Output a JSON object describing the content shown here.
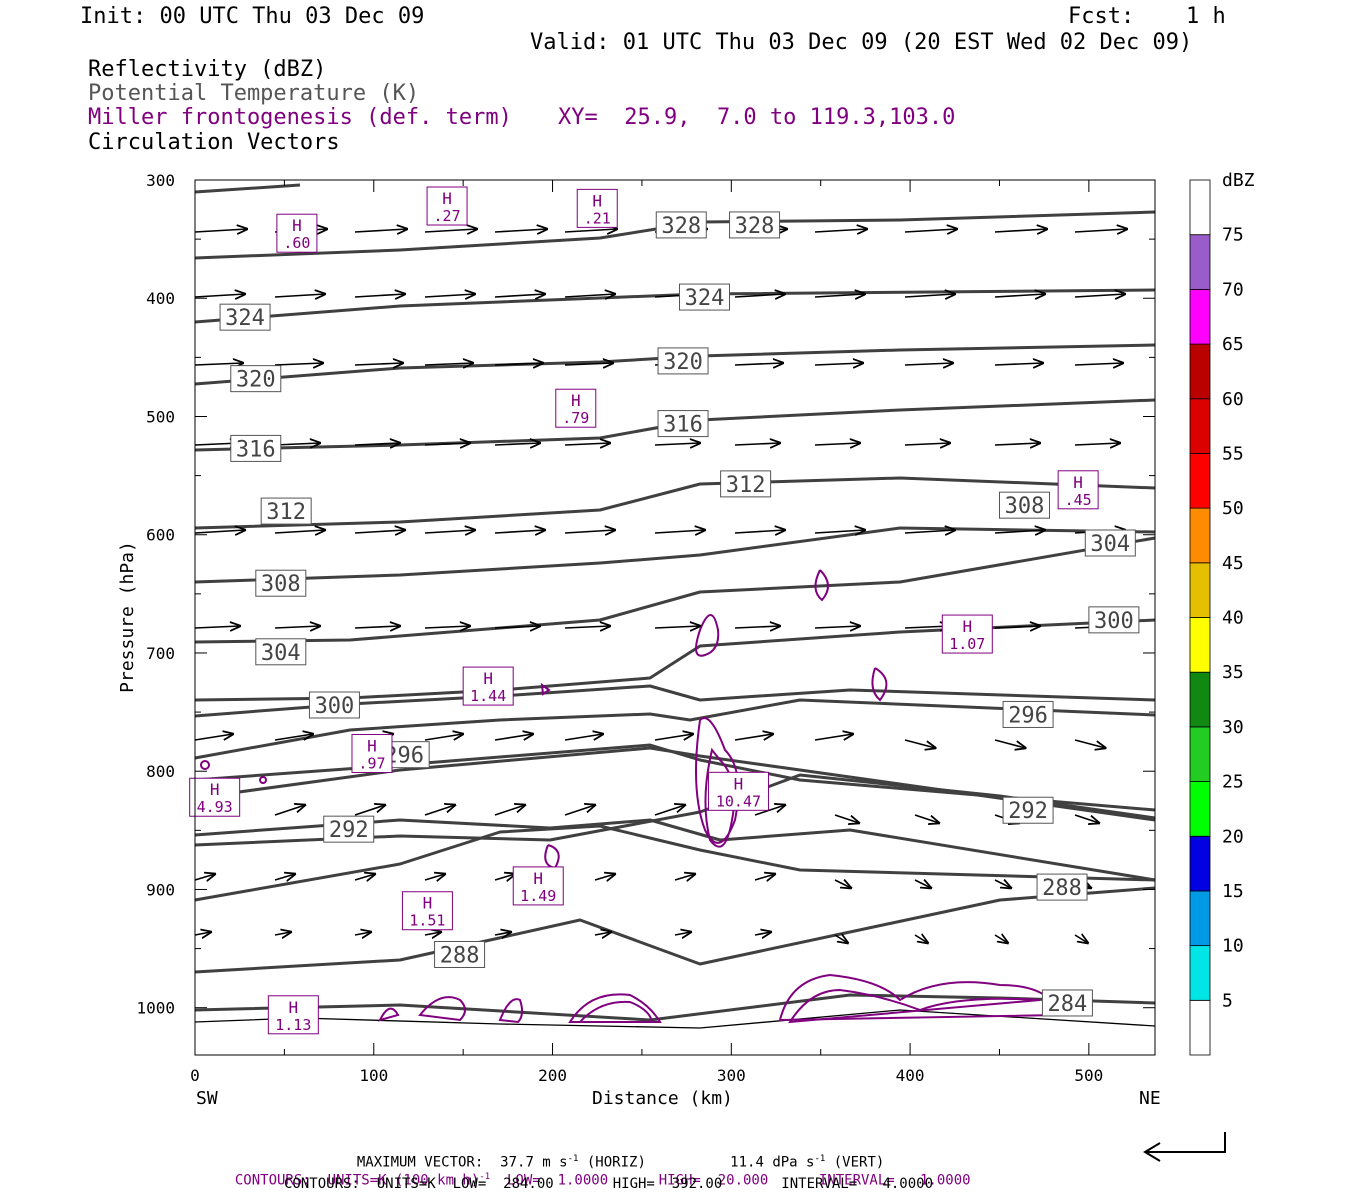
{
  "header": {
    "init": "Init: 00 UTC Thu 03 Dec 09",
    "fcst_label": "Fcst:",
    "fcst_value": "1 h",
    "valid": "Valid: 01 UTC Thu 03 Dec 09 (20 EST Wed 02 Dec 09)"
  },
  "legend": {
    "line1": "Reflectivity (dBZ)",
    "line2": "Potential Temperature (K)",
    "line3": "Miller frontogenesis (def. term)",
    "xy": "XY=  25.9,  7.0 to 119.3,103.0",
    "line4": "Circulation Vectors"
  },
  "colors": {
    "theta": "#404040",
    "frontogenesis": "#800080",
    "vectors": "#000000"
  },
  "chart_data": {
    "type": "cross-section",
    "xlabel": "Distance (km)",
    "ylabel": "Pressure (hPa)",
    "xlim": [
      0,
      537
    ],
    "ylim": [
      1040,
      300
    ],
    "x_ticks": [
      0,
      100,
      200,
      300,
      400,
      500
    ],
    "y_ticks": [
      300,
      400,
      500,
      600,
      700,
      800,
      900,
      1000
    ],
    "x_left_label": "SW",
    "x_right_label": "NE",
    "colorbar": {
      "unit": "dBZ",
      "levels": [
        5,
        10,
        15,
        20,
        25,
        30,
        35,
        40,
        45,
        50,
        55,
        60,
        65,
        70,
        75
      ],
      "colors": [
        "#ffffff",
        "#00e5e5",
        "#0099e6",
        "#0000e0",
        "#00ff00",
        "#22cc22",
        "#118811",
        "#ffff00",
        "#e5c000",
        "#ff8c00",
        "#ff0000",
        "#dd0000",
        "#bb0000",
        "#ff00ff",
        "#9a5cc8",
        "#ffffff"
      ]
    },
    "theta_labels": [
      {
        "v": "328",
        "x": 272,
        "p": 338
      },
      {
        "v": "328",
        "x": 313,
        "p": 338
      },
      {
        "v": "324",
        "x": 28,
        "p": 416
      },
      {
        "v": "324",
        "x": 285,
        "p": 399
      },
      {
        "v": "320",
        "x": 34,
        "p": 468
      },
      {
        "v": "320",
        "x": 273,
        "p": 453
      },
      {
        "v": "316",
        "x": 34,
        "p": 527
      },
      {
        "v": "316",
        "x": 273,
        "p": 506
      },
      {
        "v": "312",
        "x": 51,
        "p": 580
      },
      {
        "v": "312",
        "x": 308,
        "p": 557
      },
      {
        "v": "308",
        "x": 48,
        "p": 641
      },
      {
        "v": "308",
        "x": 464,
        "p": 575
      },
      {
        "v": "304",
        "x": 48,
        "p": 699
      },
      {
        "v": "304",
        "x": 512,
        "p": 607
      },
      {
        "v": "300",
        "x": 78,
        "p": 744
      },
      {
        "v": "300",
        "x": 514,
        "p": 672
      },
      {
        "v": "296",
        "x": 117,
        "p": 786
      },
      {
        "v": "296",
        "x": 466,
        "p": 752
      },
      {
        "v": "292",
        "x": 86,
        "p": 849
      },
      {
        "v": "292",
        "x": 466,
        "p": 833
      },
      {
        "v": "288",
        "x": 148,
        "p": 955
      },
      {
        "v": "288",
        "x": 485,
        "p": 898
      },
      {
        "v": "284",
        "x": 488,
        "p": 996
      }
    ],
    "frontogenesis_maxima": [
      {
        "label": "H",
        "value": ".60",
        "x": 57,
        "p": 345
      },
      {
        "label": "H",
        "value": ".27",
        "x": 141,
        "p": 322
      },
      {
        "label": "H",
        "value": ".21",
        "x": 225,
        "p": 324
      },
      {
        "label": "H",
        "value": ".79",
        "x": 213,
        "p": 493
      },
      {
        "label": "H",
        "value": ".45",
        "x": 494,
        "p": 562
      },
      {
        "label": "H",
        "value": "1.07",
        "x": 432,
        "p": 684
      },
      {
        "label": "H",
        "value": "1.44",
        "x": 164,
        "p": 728
      },
      {
        "label": "H",
        "value": ".97",
        "x": 99,
        "p": 785
      },
      {
        "label": "H",
        "value": "4.93",
        "x": 11,
        "p": 822
      },
      {
        "label": "H",
        "value": "10.47",
        "x": 304,
        "p": 817
      },
      {
        "label": "H",
        "value": "1.49",
        "x": 192,
        "p": 897
      },
      {
        "label": "H",
        "value": "1.51",
        "x": 130,
        "p": 918
      },
      {
        "label": "H",
        "value": "1.13",
        "x": 55,
        "p": 1006
      }
    ]
  },
  "footer": {
    "max_vector_label": "MAXIMUM VECTOR:",
    "max_vector_horiz": "37.7 m s",
    "max_vector_horiz_unit": " (HORIZ)",
    "max_vector_vert": "11.4 dPa s",
    "max_vector_vert_unit": " (VERT)",
    "exp": "-1",
    "purple_line": {
      "contours": "CONTOURS:  UNITS=K (100 km h)",
      "rest": "  LOW=  1.0000      HIGH=  20.000      INTERVAL=   1.0000"
    },
    "black_line": "CONTOURS:  UNITS=K  LOW=  284.00       HIGH=  392.00       INTERVAL=   4.0000"
  }
}
